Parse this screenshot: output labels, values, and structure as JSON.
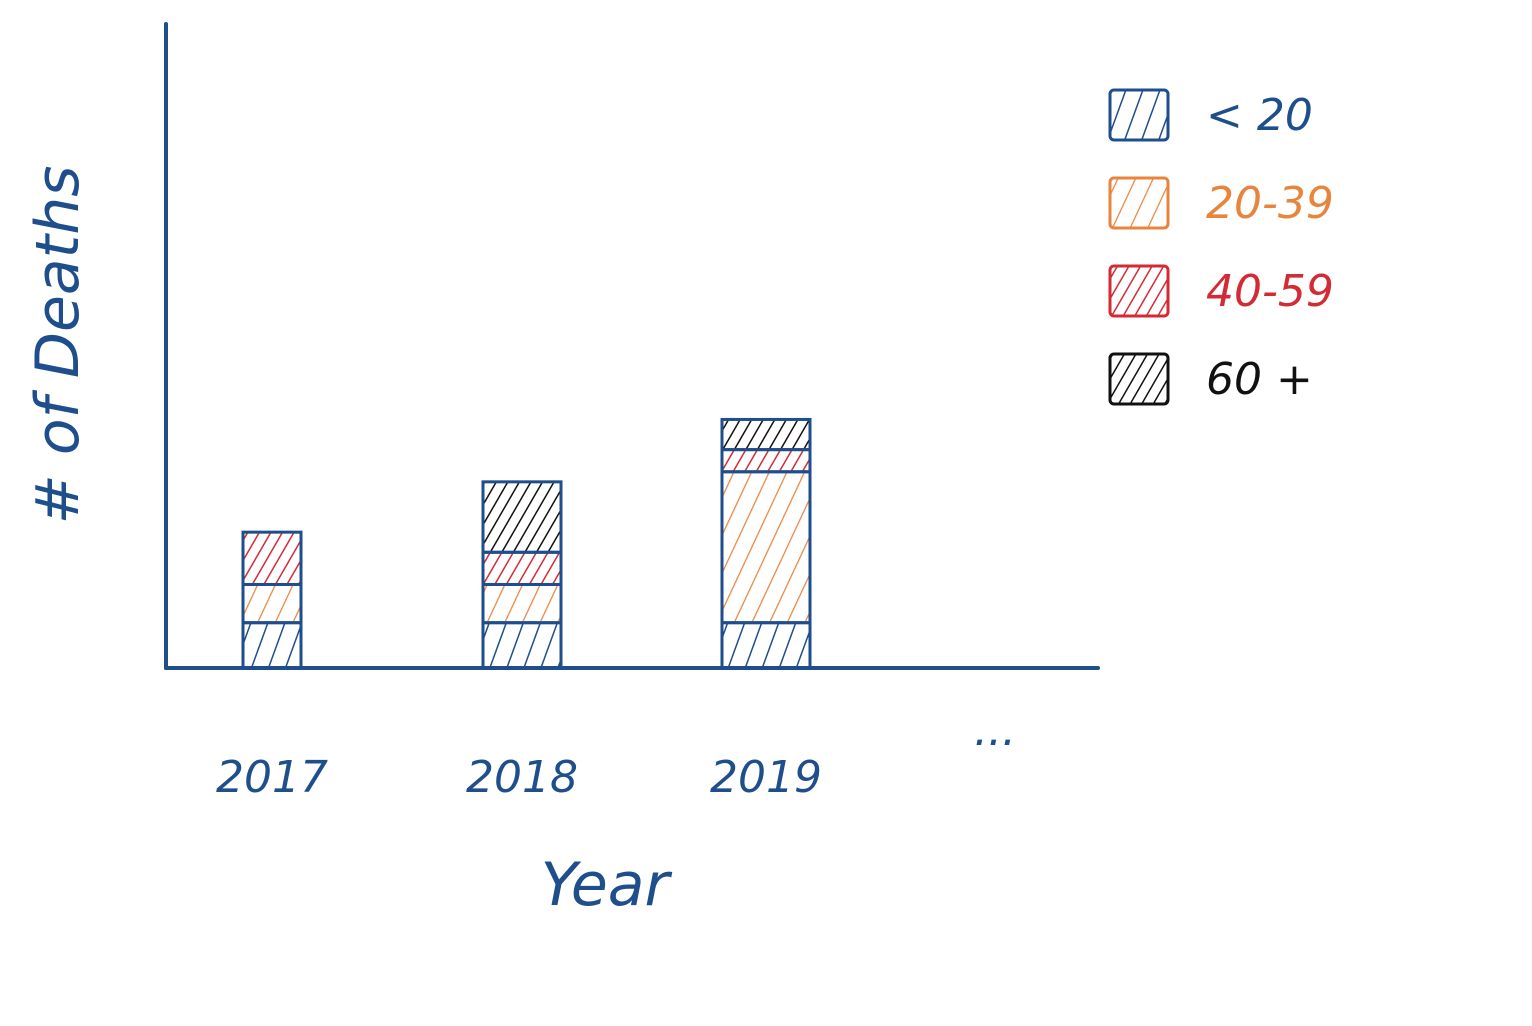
{
  "chart_data": {
    "type": "bar",
    "stacked": true,
    "title": "",
    "xlabel": "Year",
    "ylabel": "# of Deaths",
    "categories": [
      "2017",
      "2018",
      "2019",
      "..."
    ],
    "series": [
      {
        "name": "< 20",
        "color": "#1f4e8c",
        "values": [
          45,
          45,
          45,
          null
        ]
      },
      {
        "name": "20-39",
        "color": "#e8853d",
        "values": [
          38,
          38,
          150,
          null
        ]
      },
      {
        "name": "40-59",
        "color": "#d42a36",
        "values": [
          52,
          32,
          22,
          null
        ]
      },
      {
        "name": "60 +",
        "color": "#111111",
        "values": [
          0,
          70,
          30,
          null
        ]
      }
    ],
    "ylim": [
      0,
      640
    ],
    "grid": false,
    "legend": "top-right",
    "hatch": "scribble"
  }
}
